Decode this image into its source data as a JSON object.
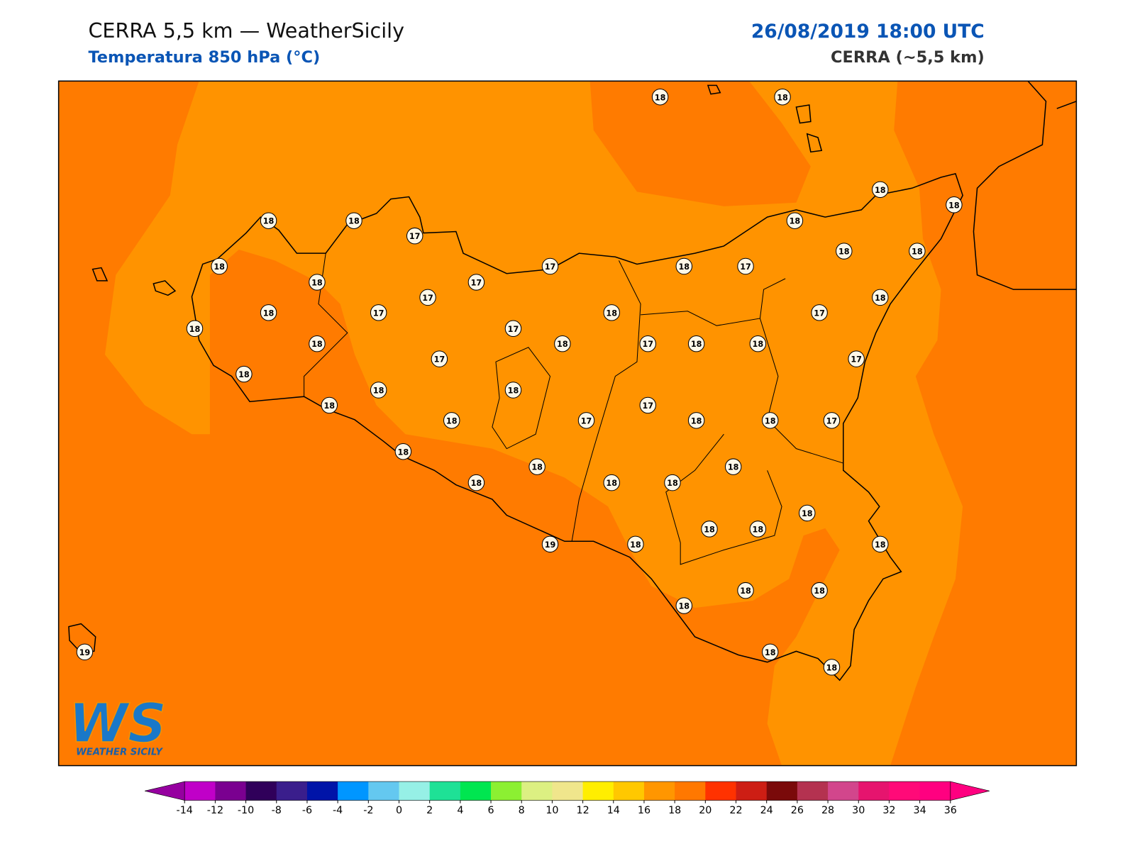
{
  "header": {
    "title": "CERRA 5,5 km — WeatherSicily",
    "subtitle": "Temperatura 850 hPa (°C)",
    "date": "26/08/2019 18:00 UTC",
    "model": "CERRA (~5,5 km)"
  },
  "stations": {
    "values": [
      18,
      18,
      18,
      18,
      18,
      18,
      17,
      18,
      18,
      18,
      18,
      17,
      18,
      17,
      18,
      17,
      17,
      18,
      18,
      17,
      18,
      17,
      18,
      17,
      18,
      18,
      17,
      18,
      18,
      17,
      17,
      18,
      18,
      18,
      18,
      17,
      18,
      17,
      18,
      18,
      17,
      18,
      18,
      18,
      18,
      18,
      18,
      18,
      18,
      18,
      19,
      18,
      18,
      18,
      18,
      18,
      19,
      18,
      18
    ]
  },
  "colorbar": {
    "ticks": [
      -14,
      -12,
      -10,
      -8,
      -6,
      -4,
      -2,
      0,
      2,
      4,
      6,
      8,
      10,
      12,
      14,
      16,
      18,
      20,
      22,
      24,
      26,
      28,
      30,
      32,
      34,
      36
    ],
    "colors": [
      "#c000c8",
      "#7a0090",
      "#30005a",
      "#3a1e8c",
      "#0014a8",
      "#0096ff",
      "#64c8f0",
      "#96f0e6",
      "#1ee196",
      "#00e650",
      "#8cf032",
      "#dcf082",
      "#f0e68c",
      "#ffee00",
      "#ffc800",
      "#ff9600",
      "#ff7800",
      "#ff3200",
      "#cd1e14",
      "#7a0a0a",
      "#b43250",
      "#d2468c",
      "#e6146e",
      "#ff0a78",
      "#ff0080"
    ],
    "under_color": "#9600a0",
    "over_color": "#ff0080"
  },
  "logo": {
    "letters": "WS",
    "name": "WEATHER SICILY"
  }
}
